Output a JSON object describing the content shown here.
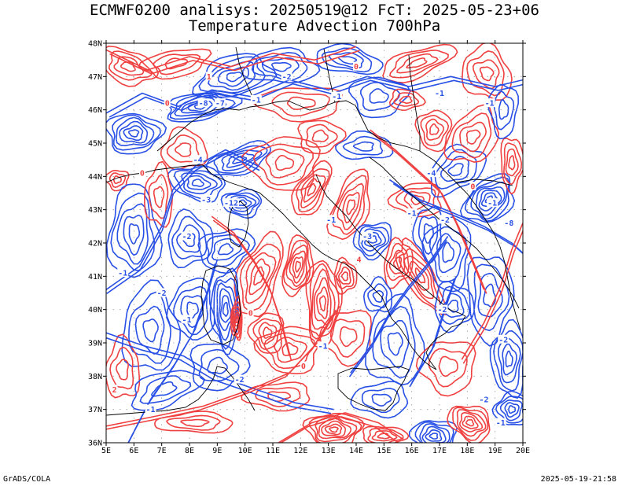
{
  "title": {
    "line1": "ECMWF0200 analisys: 20250519@12 FcT: 2025-05-23+06",
    "line2": "Temperature Advection 700hPa"
  },
  "footer": {
    "left": "GrADS/COLA",
    "right": "2025-05-19-21:58"
  },
  "map": {
    "lat_labels": [
      "48N",
      "47N",
      "46N",
      "45N",
      "44N",
      "43N",
      "42N",
      "41N",
      "40N",
      "39N",
      "38N",
      "37N",
      "36N"
    ],
    "lon_labels": [
      "5E",
      "6E",
      "7E",
      "8E",
      "9E",
      "10E",
      "11E",
      "12E",
      "13E",
      "14E",
      "15E",
      "16E",
      "17E",
      "18E",
      "19E",
      "20E"
    ],
    "colors": {
      "warm": "#f04040",
      "cold": "#2850e6",
      "border": "#000000",
      "grid": "#9a9a9a"
    },
    "contour_labels": [
      {
        "text": "-1",
        "lon": 5.6,
        "lat": 41.1,
        "c": "cold"
      },
      {
        "text": "-2",
        "lon": 7.9,
        "lat": 42.2,
        "c": "cold"
      },
      {
        "text": "-12",
        "lon": 9.5,
        "lat": 43.2,
        "c": "cold"
      },
      {
        "text": "-8",
        "lon": 8.5,
        "lat": 46.2,
        "c": "cold"
      },
      {
        "text": "-7",
        "lon": 9.1,
        "lat": 46.2,
        "c": "cold"
      },
      {
        "text": "-1",
        "lon": 10.4,
        "lat": 46.3,
        "c": "cold"
      },
      {
        "text": "-4",
        "lon": 8.3,
        "lat": 44.5,
        "c": "cold"
      },
      {
        "text": "-3",
        "lon": 8.6,
        "lat": 43.3,
        "c": "cold"
      },
      {
        "text": "0",
        "lon": 10.2,
        "lat": 39.9,
        "c": "warm"
      },
      {
        "text": "-2",
        "lon": 9.8,
        "lat": 37.9,
        "c": "cold"
      },
      {
        "text": "-1",
        "lon": 12.8,
        "lat": 38.9,
        "c": "cold"
      },
      {
        "text": "0",
        "lon": 12.1,
        "lat": 38.3,
        "c": "warm"
      },
      {
        "text": "-1",
        "lon": 13.1,
        "lat": 42.7,
        "c": "cold"
      },
      {
        "text": "-3",
        "lon": 14.4,
        "lat": 42.2,
        "c": "cold"
      },
      {
        "text": "4",
        "lon": 14.1,
        "lat": 41.5,
        "c": "warm"
      },
      {
        "text": "-1",
        "lon": 16.0,
        "lat": 42.9,
        "c": "cold"
      },
      {
        "text": "-2",
        "lon": 17.2,
        "lat": 42.7,
        "c": "cold"
      },
      {
        "text": "-2",
        "lon": 17.1,
        "lat": 40.0,
        "c": "cold"
      },
      {
        "text": "-4",
        "lon": 16.7,
        "lat": 44.1,
        "c": "cold"
      },
      {
        "text": "-1",
        "lon": 18.9,
        "lat": 43.2,
        "c": "cold"
      },
      {
        "text": "-8",
        "lon": 19.5,
        "lat": 42.6,
        "c": "cold"
      },
      {
        "text": "0",
        "lon": 18.2,
        "lat": 43.7,
        "c": "warm"
      },
      {
        "text": "-1",
        "lon": 17.0,
        "lat": 46.5,
        "c": "cold"
      },
      {
        "text": "-1",
        "lon": 18.8,
        "lat": 46.2,
        "c": "cold"
      },
      {
        "text": "0",
        "lon": 14.0,
        "lat": 47.3,
        "c": "warm"
      },
      {
        "text": "-1",
        "lon": 13.3,
        "lat": 46.4,
        "c": "cold"
      },
      {
        "text": "-2",
        "lon": 11.5,
        "lat": 47.0,
        "c": "cold"
      },
      {
        "text": "-2",
        "lon": 18.6,
        "lat": 37.3,
        "c": "cold"
      },
      {
        "text": "-1",
        "lon": 19.2,
        "lat": 36.6,
        "c": "cold"
      },
      {
        "text": "-2",
        "lon": 19.3,
        "lat": 39.1,
        "c": "cold"
      },
      {
        "text": "-1",
        "lon": 6.6,
        "lat": 37.0,
        "c": "cold"
      },
      {
        "text": "2",
        "lon": 5.3,
        "lat": 37.6,
        "c": "warm"
      },
      {
        "text": "-1",
        "lon": 7.9,
        "lat": 39.7,
        "c": "cold"
      },
      {
        "text": "-2",
        "lon": 7.0,
        "lat": 40.5,
        "c": "cold"
      },
      {
        "text": "0",
        "lon": 6.3,
        "lat": 44.1,
        "c": "warm"
      },
      {
        "text": "1",
        "lon": 8.7,
        "lat": 47.0,
        "c": "warm"
      },
      {
        "text": "0",
        "lon": 7.2,
        "lat": 46.2,
        "c": "warm"
      }
    ]
  }
}
